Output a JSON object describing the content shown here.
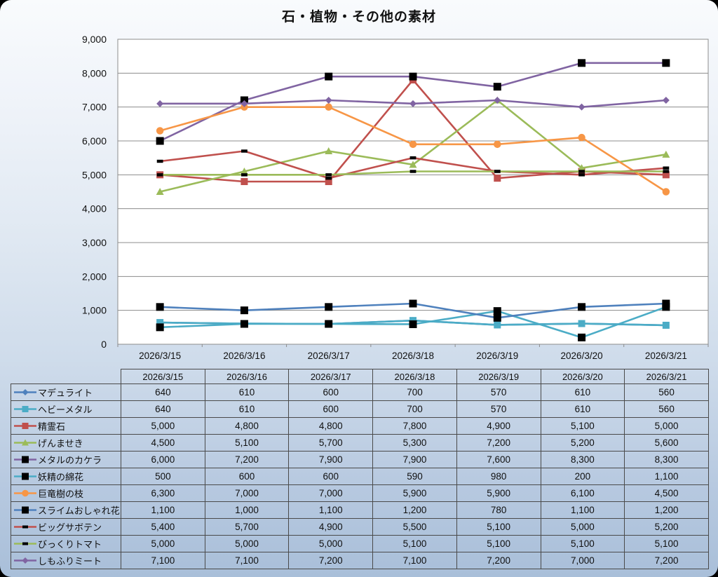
{
  "chart_data": {
    "type": "line",
    "title": "石・植物・その他の素材",
    "categories": [
      "2026/3/15",
      "2026/3/16",
      "2026/3/17",
      "2026/3/18",
      "2026/3/19",
      "2026/3/20",
      "2026/3/21"
    ],
    "series": [
      {
        "name": "マデュライト",
        "color": "#4F81BD",
        "marker": "diamond",
        "marker_color": "#4F81BD",
        "values": [
          640,
          610,
          600,
          700,
          570,
          610,
          560
        ]
      },
      {
        "name": "ヘビーメタル",
        "color": "#4BACC6",
        "marker": "square",
        "marker_color": "#4BACC6",
        "values": [
          640,
          610,
          600,
          700,
          570,
          610,
          560
        ]
      },
      {
        "name": "精霊石",
        "color": "#C0504D",
        "marker": "square",
        "marker_color": "#C0504D",
        "values": [
          5000,
          4800,
          4800,
          7800,
          4900,
          5100,
          5000
        ]
      },
      {
        "name": "げんませき",
        "color": "#9BBB59",
        "marker": "triangle",
        "marker_color": "#9BBB59",
        "values": [
          4500,
          5100,
          5700,
          5300,
          7200,
          5200,
          5600
        ]
      },
      {
        "name": "メタルのカケラ",
        "color": "#8064A2",
        "marker": "square",
        "marker_color": "#000000",
        "values": [
          6000,
          7200,
          7900,
          7900,
          7600,
          8300,
          8300
        ]
      },
      {
        "name": "妖精の綿花",
        "color": "#4BACC6",
        "marker": "square",
        "marker_color": "#000000",
        "values": [
          500,
          600,
          600,
          590,
          980,
          200,
          1100
        ]
      },
      {
        "name": "巨竜樹の枝",
        "color": "#F79646",
        "marker": "circle",
        "marker_color": "#F79646",
        "values": [
          6300,
          7000,
          7000,
          5900,
          5900,
          6100,
          4500
        ]
      },
      {
        "name": "スライムおしゃれ花",
        "color": "#4F81BD",
        "marker": "square",
        "marker_color": "#000000",
        "values": [
          1100,
          1000,
          1100,
          1200,
          780,
          1100,
          1200
        ]
      },
      {
        "name": "ビッグサボテン",
        "color": "#C0504D",
        "marker": "dash",
        "marker_color": "#000000",
        "values": [
          5400,
          5700,
          4900,
          5500,
          5100,
          5000,
          5200
        ]
      },
      {
        "name": "びっくりトマト",
        "color": "#9BBB59",
        "marker": "dash",
        "marker_color": "#000000",
        "values": [
          5000,
          5000,
          5000,
          5100,
          5100,
          5100,
          5100
        ]
      },
      {
        "name": "しもふりミート",
        "color": "#8064A2",
        "marker": "diamond",
        "marker_color": "#8064A2",
        "values": [
          7100,
          7100,
          7200,
          7100,
          7200,
          7000,
          7200
        ]
      }
    ],
    "ylim": [
      0,
      9000
    ],
    "ytick_step": 1000,
    "grid": true,
    "xlabel": "",
    "ylabel": "",
    "legend_position": "table-left",
    "data_table_header": [
      "2026/3/15",
      "2026/3/16",
      "2026/3/17",
      "2026/3/18",
      "2026/3/19",
      "2026/3/20",
      "2026/3/21"
    ]
  }
}
